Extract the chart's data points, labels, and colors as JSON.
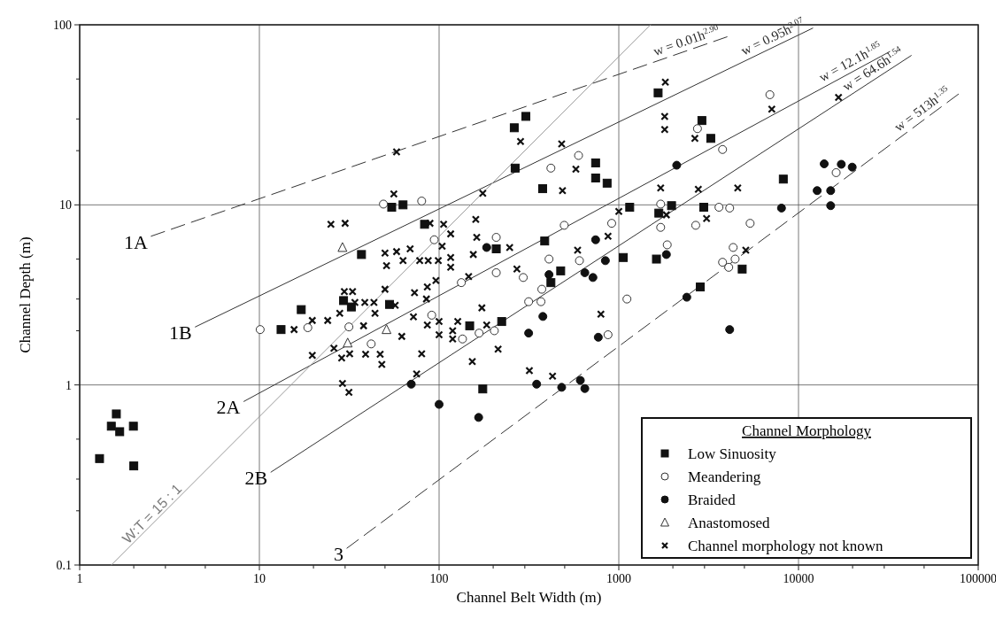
{
  "chart_data": {
    "type": "scatter",
    "xlabel": "Channel Belt Width (m)",
    "ylabel": "Channel Depth (m)",
    "legend_title": "Channel Morphology",
    "legend": "bottom right",
    "log": "xy",
    "grid": true,
    "xlim": [
      1,
      100000
    ],
    "ylim": [
      0.1,
      100
    ],
    "xticks": [
      1,
      {
        "value": 2,
        "label": null
      },
      {
        "value": 3,
        "label": null
      },
      {
        "value": 5,
        "label": null
      },
      10,
      {
        "value": 20,
        "label": null
      },
      {
        "value": 30,
        "label": null
      },
      {
        "value": 50,
        "label": null
      },
      100,
      {
        "value": 200,
        "label": null
      },
      {
        "value": 300,
        "label": null
      },
      {
        "value": 500,
        "label": null
      },
      1000,
      {
        "value": 2000,
        "label": null
      },
      {
        "value": 3000,
        "label": null
      },
      {
        "value": 5000,
        "label": null
      },
      10000,
      {
        "value": 20000,
        "label": null
      },
      {
        "value": 30000,
        "label": null
      },
      {
        "value": 50000,
        "label": null
      },
      100000
    ],
    "yticks": [
      0.1,
      {
        "value": 0.2,
        "label": null
      },
      {
        "value": 0.3,
        "label": null
      },
      {
        "value": 0.5,
        "label": null
      },
      1,
      {
        "value": 2,
        "label": null
      },
      {
        "value": 3,
        "label": null
      },
      {
        "value": 5,
        "label": null
      },
      10,
      {
        "value": 20,
        "label": null
      },
      {
        "value": 30,
        "label": null
      },
      {
        "value": 50,
        "label": null
      },
      100
    ],
    "series": [
      {
        "name": "Low Sinuosity",
        "marker": "square",
        "color": "#111111",
        "x": [
          1.29,
          1.6,
          1.5,
          1.67,
          1.99,
          2.0,
          13.2,
          17.1,
          304,
          262,
          265,
          377,
          743,
          743,
          861,
          54.5,
          63,
          83,
          37,
          208,
          387,
          475,
          419,
          29.4,
          32.5,
          53,
          148,
          223,
          175,
          1150,
          1059,
          1655,
          1670,
          1620,
          2900,
          3250,
          1966,
          2970,
          8230,
          4860,
          2840
        ],
        "values": [
          0.39,
          0.69,
          0.59,
          0.55,
          0.59,
          0.355,
          2.03,
          2.62,
          31,
          26.8,
          16,
          12.3,
          17.1,
          14.1,
          13.2,
          9.7,
          10,
          7.8,
          5.3,
          5.7,
          6.3,
          4.3,
          3.7,
          2.94,
          2.71,
          2.8,
          2.13,
          2.25,
          0.95,
          9.7,
          5.1,
          41.9,
          9.0,
          5.0,
          29.4,
          23.4,
          9.9,
          9.7,
          13.9,
          4.4,
          3.5
        ]
      },
      {
        "name": "Meandering",
        "marker": "circle",
        "color": "#ffffff",
        "x": [
          10.1,
          18.6,
          49,
          80,
          597,
          419,
          94,
          208,
          497,
          913,
          409,
          604,
          208,
          294,
          133,
          373,
          315,
          369,
          1110,
          91,
          31.5,
          41.9,
          167,
          203,
          135,
          871,
          1710,
          1710,
          6930,
          2740,
          3780,
          16200,
          3610,
          4140,
          2680,
          5380,
          1860,
          4330,
          3780,
          4440,
          4090
        ],
        "values": [
          2.03,
          2.08,
          10.1,
          10.5,
          18.8,
          16,
          6.4,
          6.6,
          7.7,
          7.9,
          5.0,
          4.9,
          4.2,
          3.95,
          3.7,
          3.4,
          2.9,
          2.9,
          3.0,
          2.44,
          2.1,
          1.69,
          1.94,
          2.0,
          1.8,
          1.9,
          10.1,
          7.5,
          40.9,
          26.5,
          20.3,
          15.1,
          9.7,
          9.6,
          7.7,
          7.9,
          6.0,
          5.8,
          4.8,
          5.0,
          4.5
        ]
      },
      {
        "name": "Braided",
        "marker": "circle",
        "color": "#111111",
        "x": [
          184,
          743,
          842,
          409,
          647,
          718,
          378,
          315,
          769,
          70,
          349,
          481,
          611,
          647,
          100,
          166,
          2100,
          13900,
          17300,
          19900,
          12700,
          15100,
          15100,
          8040,
          1840,
          2390,
          4140
        ],
        "values": [
          5.8,
          6.4,
          4.9,
          4.1,
          4.2,
          3.95,
          2.4,
          1.94,
          1.84,
          1.01,
          1.01,
          0.97,
          1.06,
          0.955,
          0.78,
          0.66,
          16.6,
          16.9,
          16.8,
          16.2,
          12.0,
          12.0,
          9.9,
          9.6,
          5.3,
          3.07,
          2.03
        ]
      },
      {
        "name": "Anastomosed",
        "marker": "triangle",
        "color": "#ffffff",
        "x": [
          29,
          51,
          31
        ],
        "values": [
          5.8,
          2.03,
          1.71
        ]
      },
      {
        "name": "Channel morphology not known",
        "marker": "cross",
        "color": "#111111",
        "x": [
          25,
          19.7,
          24,
          19.7,
          15.6,
          58,
          284,
          481,
          577,
          486,
          175,
          56,
          30,
          89,
          106,
          160,
          116,
          162,
          104,
          247,
          50,
          58,
          69,
          63,
          78,
          87,
          99,
          116,
          116,
          51,
          155,
          590,
          271,
          146,
          96,
          29.7,
          33,
          50,
          86,
          73,
          85,
          34,
          38.6,
          43.4,
          57,
          44,
          28,
          38,
          72,
          86,
          100,
          100,
          127,
          119,
          119,
          184,
          173,
          62,
          795,
          26,
          28.7,
          31.8,
          39,
          47,
          48,
          80,
          213,
          153,
          75,
          318,
          428,
          29,
          31.5,
          1815,
          1800,
          1800,
          2650,
          7100,
          16700,
          1710,
          2770,
          4590,
          1840,
          3080,
          5090,
          1000,
          871
        ],
        "values": [
          7.8,
          2.28,
          2.28,
          1.46,
          2.03,
          19.7,
          22.5,
          21.8,
          15.8,
          12.0,
          11.6,
          11.5,
          7.9,
          7.9,
          7.8,
          8.3,
          6.9,
          6.6,
          5.9,
          5.8,
          5.4,
          5.5,
          5.7,
          4.9,
          4.9,
          4.9,
          4.9,
          5.1,
          4.5,
          4.6,
          5.3,
          5.6,
          4.4,
          4.0,
          3.8,
          3.3,
          3.3,
          3.4,
          3.5,
          3.25,
          3.0,
          2.87,
          2.87,
          2.87,
          2.77,
          2.5,
          2.5,
          2.13,
          2.39,
          2.15,
          2.25,
          1.9,
          2.25,
          2.0,
          1.8,
          2.15,
          2.68,
          1.86,
          2.47,
          1.6,
          1.41,
          1.49,
          1.48,
          1.48,
          1.3,
          1.49,
          1.58,
          1.35,
          1.15,
          1.2,
          1.12,
          1.02,
          0.91,
          48,
          31,
          26.2,
          23.4,
          34,
          39.5,
          12.4,
          12.2,
          12.4,
          8.8,
          8.4,
          5.6,
          9.2,
          6.7
        ]
      },
      {
        "name": "w = 0.01h$^{2.90}$",
        "type": "line",
        "line_style": "dashed",
        "color": "#333333",
        "x": [
          2.5,
          4000
        ],
        "values": [
          6.7,
          85.7
        ]
      },
      {
        "name": "w = 0.95h$^{2.07}$",
        "type": "line",
        "line_style": "solid",
        "color": "#333333",
        "x": [
          4.4,
          12000
        ],
        "values": [
          2.1,
          95.8
        ]
      },
      {
        "name": "w = 12.1h$^{1.85}$",
        "type": "line",
        "line_style": "solid",
        "color": "#333333",
        "x": [
          8.2,
          32200
        ],
        "values": [
          0.81,
          71
        ]
      },
      {
        "name": "w = 64.6h$^{1.54}$",
        "type": "line",
        "line_style": "solid",
        "color": "#333333",
        "x": [
          11.6,
          42400
        ],
        "values": [
          0.328,
          67.5
        ]
      },
      {
        "name": "w = 513h$^{1.35}$",
        "type": "line",
        "line_style": "dashed",
        "color": "#333333",
        "x": [
          30.7,
          77600
        ],
        "values": [
          0.124,
          41.2
        ]
      },
      {
        "name": "W:T = 15 : 1",
        "type": "line",
        "line_style": "solid",
        "color": "#999999",
        "x": [
          1.5,
          1500
        ],
        "values": [
          0.1,
          100
        ]
      }
    ],
    "annotations": [
      {
        "text": "1A",
        "x": 2.5,
        "y": 6.7
      },
      {
        "text": "1B",
        "x": 4.4,
        "y": 2.1
      },
      {
        "text": "2A",
        "x": 8.2,
        "y": 0.81
      },
      {
        "text": "2B",
        "x": 11.6,
        "y": 0.328
      },
      {
        "text": "3",
        "x": 30.7,
        "y": 0.124
      }
    ]
  }
}
